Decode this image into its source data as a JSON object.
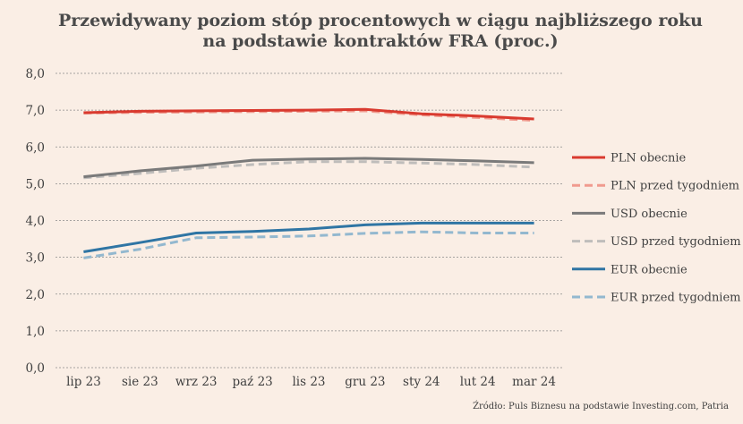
{
  "chart_data": {
    "type": "line",
    "title": "Przewidywany poziom stóp procentowych w ciągu najbliższego roku  na podstawie kontraktów FRA (proc.)",
    "categories": [
      "lip 23",
      "sie 23",
      "wrz 23",
      "paź 23",
      "lis 23",
      "gru 23",
      "sty 24",
      "lut 24",
      "mar 24"
    ],
    "ylim": [
      0,
      8
    ],
    "yticks": [
      "0,0",
      "1,0",
      "2,0",
      "3,0",
      "4,0",
      "5,0",
      "6,0",
      "7,0",
      "8,0"
    ],
    "grid": true,
    "legend_position": "right",
    "series": [
      {
        "name": "PLN obecnie",
        "color": "#d93a2f",
        "dashed": false,
        "values": [
          6.93,
          6.97,
          6.98,
          6.99,
          7.0,
          7.02,
          6.9,
          6.84,
          6.76
        ]
      },
      {
        "name": "PLN przed tygodniem",
        "color": "#f09a8e",
        "dashed": true,
        "values": [
          6.92,
          6.94,
          6.95,
          6.96,
          6.97,
          6.98,
          6.87,
          6.8,
          6.72
        ]
      },
      {
        "name": "USD obecnie",
        "color": "#7a7a7a",
        "dashed": false,
        "values": [
          5.19,
          5.35,
          5.48,
          5.64,
          5.67,
          5.69,
          5.66,
          5.62,
          5.57
        ]
      },
      {
        "name": "USD przed tygodniem",
        "color": "#bfbdbb",
        "dashed": true,
        "values": [
          5.16,
          5.28,
          5.42,
          5.52,
          5.6,
          5.6,
          5.56,
          5.52,
          5.45
        ]
      },
      {
        "name": "EUR obecnie",
        "color": "#2f75a4",
        "dashed": false,
        "values": [
          3.15,
          3.4,
          3.66,
          3.7,
          3.77,
          3.88,
          3.93,
          3.93,
          3.93
        ]
      },
      {
        "name": "EUR przed tygodniem",
        "color": "#93b8cf",
        "dashed": true,
        "values": [
          2.98,
          3.22,
          3.53,
          3.55,
          3.58,
          3.65,
          3.69,
          3.66,
          3.66
        ]
      }
    ]
  },
  "source": "Źródło: Puls Biznesu na podstawie Investing.com, Patria"
}
